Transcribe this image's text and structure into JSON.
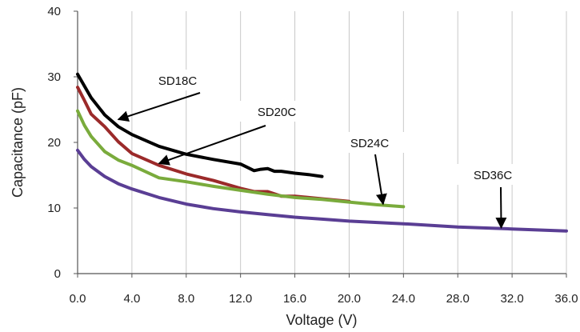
{
  "chart_data": {
    "type": "line",
    "title": "",
    "xlabel": "Voltage (V)",
    "ylabel": "Capacitance (pF)",
    "xlim": [
      0,
      36
    ],
    "ylim": [
      0,
      40
    ],
    "x_ticks": [
      "0.0",
      "4.0",
      "8.0",
      "12.0",
      "16.0",
      "20.0",
      "24.0",
      "28.0",
      "32.0",
      "36.0"
    ],
    "y_ticks": [
      "0",
      "10",
      "20",
      "30",
      "40"
    ],
    "grid": "vertical",
    "legend": "none",
    "series": [
      {
        "name": "SD18C",
        "color": "#000000",
        "x": [
          0,
          0.5,
          1,
          2,
          3,
          4,
          6,
          8,
          10,
          12,
          12.5,
          13,
          13.5,
          14,
          14.5,
          15,
          16,
          17,
          18
        ],
        "y": [
          30.4,
          28.6,
          26.8,
          24.2,
          22.4,
          21.2,
          19.4,
          18.2,
          17.4,
          16.7,
          16.2,
          15.7,
          15.9,
          16.0,
          15.6,
          15.6,
          15.3,
          15.1,
          14.8
        ]
      },
      {
        "name": "SD20C",
        "color": "#9b2a2a",
        "x": [
          0,
          0.5,
          1,
          2,
          3,
          4,
          6,
          8,
          10,
          12,
          13,
          14,
          15,
          16,
          18,
          20
        ],
        "y": [
          28.4,
          26.4,
          24.3,
          22.4,
          20.1,
          18.3,
          16.5,
          15.2,
          14.2,
          13.0,
          12.5,
          12.5,
          11.8,
          11.8,
          11.4,
          11.0
        ]
      },
      {
        "name": "SD24C",
        "color": "#7aab3c",
        "x": [
          0,
          0.5,
          1,
          2,
          3,
          4,
          6,
          8,
          10,
          12,
          14,
          16,
          18,
          20,
          22,
          24
        ],
        "y": [
          24.8,
          22.6,
          20.9,
          18.6,
          17.3,
          16.5,
          14.6,
          14.0,
          13.3,
          12.7,
          12.1,
          11.6,
          11.3,
          10.9,
          10.5,
          10.2
        ]
      },
      {
        "name": "SD36C",
        "color": "#5a3e94",
        "x": [
          0,
          0.5,
          1,
          2,
          3,
          4,
          6,
          8,
          10,
          12,
          14,
          16,
          18,
          20,
          24,
          28,
          32,
          36
        ],
        "y": [
          18.8,
          17.4,
          16.3,
          14.8,
          13.7,
          12.9,
          11.6,
          10.6,
          9.9,
          9.4,
          9.0,
          8.6,
          8.3,
          8.0,
          7.6,
          7.1,
          6.8,
          6.5
        ]
      }
    ],
    "annotations": [
      {
        "text": "SD18C",
        "series": 0,
        "x": 3.0,
        "y": 23.5
      },
      {
        "text": "SD20C",
        "series": 1,
        "x": 6.0,
        "y": 16.8
      },
      {
        "text": "SD24C",
        "series": 2,
        "x": 22.5,
        "y": 10.6
      },
      {
        "text": "SD36C",
        "series": 3,
        "x": 31.2,
        "y": 7.0
      }
    ]
  }
}
